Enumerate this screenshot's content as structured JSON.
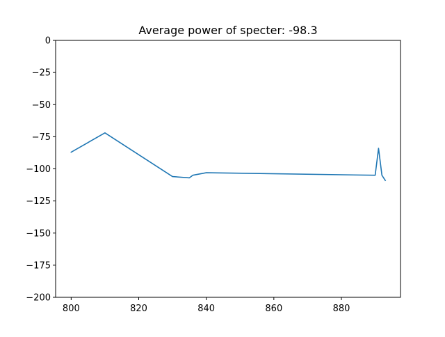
{
  "chart_data": {
    "type": "line",
    "title": "Average power of specter:  -98.3",
    "xlabel": "",
    "ylabel": "",
    "xlim": [
      795.4,
      897.5
    ],
    "ylim": [
      -200,
      0
    ],
    "x_ticks": [
      800,
      820,
      840,
      860,
      880
    ],
    "y_ticks": [
      0,
      -25,
      -50,
      -75,
      -100,
      -125,
      -150,
      -175,
      -200
    ],
    "x_tick_labels": [
      "800",
      "820",
      "840",
      "860",
      "880"
    ],
    "y_tick_labels": [
      "0",
      "−25",
      "−50",
      "−75",
      "−100",
      "−125",
      "−150",
      "−175",
      "−200"
    ],
    "grid": false,
    "series": [
      {
        "color": "#1f77b4",
        "x": [
          800,
          810,
          830,
          835,
          836,
          840,
          890,
          891,
          892,
          893
        ],
        "y": [
          -87,
          -72,
          -106,
          -107,
          -105,
          -103,
          -105,
          -84,
          -105,
          -109
        ]
      }
    ]
  }
}
